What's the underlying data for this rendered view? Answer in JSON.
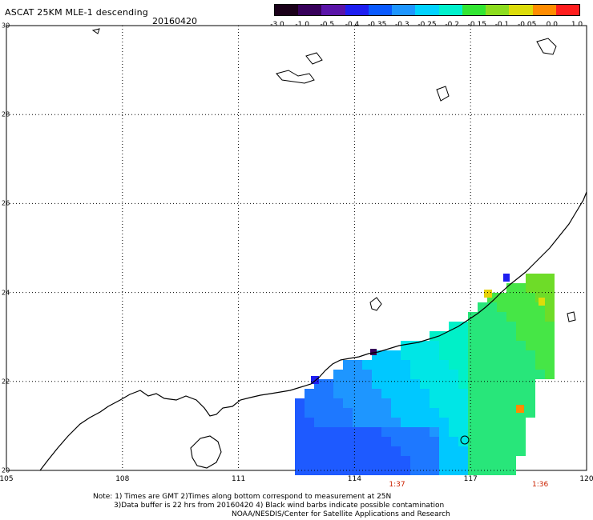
{
  "header": {
    "title": "ASCAT 25KM MLE-1 descending",
    "date": "20160420"
  },
  "colorbar": {
    "labels": [
      "-3.0",
      "-1.0",
      "-0.5",
      "-0.4",
      "-0.35",
      "-0.3",
      "-0.25",
      "-0.2",
      "-0.15",
      "-0.1",
      "-0.05",
      "0.0",
      "1.0"
    ],
    "colors": [
      "#1a0019",
      "#37005a",
      "#5a14a8",
      "#1e1ef0",
      "#0a5aff",
      "#1e96ff",
      "#00d2ff",
      "#00f0cc",
      "#32e632",
      "#8cdc1e",
      "#dcdc0a",
      "#ff8c00",
      "#ff1e1e"
    ]
  },
  "map": {
    "lat_labels": [
      "30",
      "28",
      "26",
      "24",
      "22",
      "20"
    ],
    "lon_labels": [
      "105",
      "108",
      "111",
      "114",
      "117",
      "120"
    ],
    "time_labels": [
      {
        "text": "1:37",
        "lon": 115.1
      },
      {
        "text": "1:36",
        "lon": 118.8
      }
    ]
  },
  "notes": {
    "line1": "Note: 1) Times are GMT 2)Times along bottom correspond to measurement at 25N",
    "line2": "3)Data buffer is 22 hrs from 20160420 4) Black wind barbs indicate possible contamination",
    "line3": "NOAA/NESDIS/Center for Satellite Applications and Research"
  }
}
